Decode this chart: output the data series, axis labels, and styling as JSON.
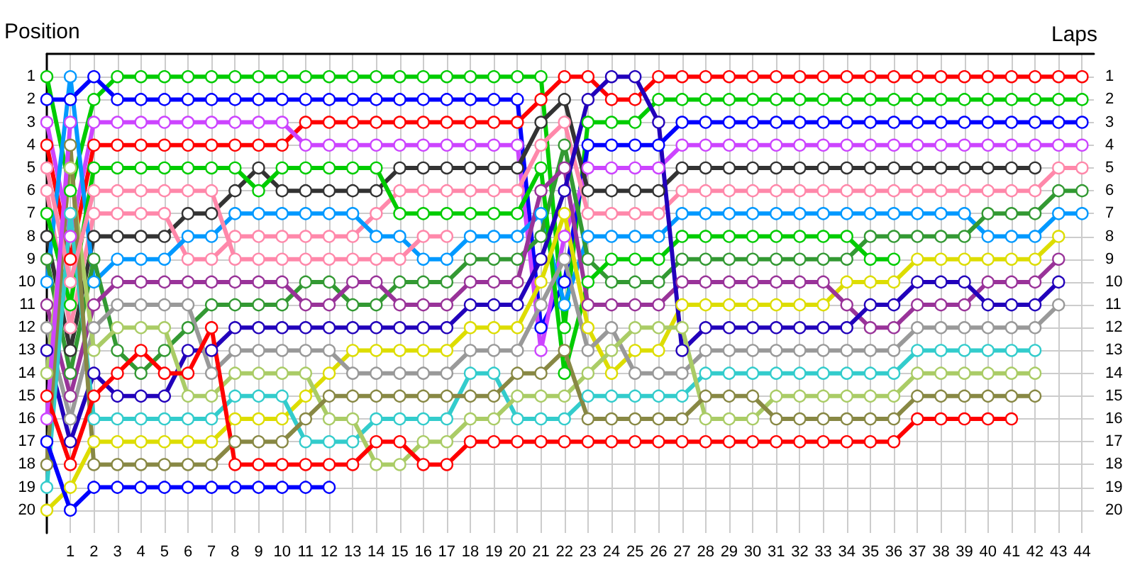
{
  "chart_data": {
    "type": "line",
    "xlabel": "Laps",
    "ylabel": "Position",
    "x": [
      0,
      1,
      2,
      3,
      4,
      5,
      6,
      7,
      8,
      9,
      10,
      11,
      12,
      13,
      14,
      15,
      16,
      17,
      18,
      19,
      20,
      21,
      22,
      23,
      24,
      25,
      26,
      27,
      28,
      29,
      30,
      31,
      32,
      33,
      34,
      35,
      36,
      37,
      38,
      39,
      40,
      41,
      42,
      43,
      44
    ],
    "xlim": [
      0,
      44.5
    ],
    "xticks": [
      1,
      2,
      3,
      4,
      5,
      6,
      7,
      8,
      9,
      10,
      11,
      12,
      13,
      14,
      15,
      16,
      17,
      18,
      19,
      20,
      21,
      22,
      23,
      24,
      25,
      26,
      27,
      28,
      29,
      30,
      31,
      32,
      33,
      34,
      35,
      36,
      37,
      38,
      39,
      40,
      41,
      42,
      43,
      44
    ],
    "ylim": [
      21,
      0
    ],
    "yticks": [
      1,
      2,
      3,
      4,
      5,
      6,
      7,
      8,
      9,
      10,
      11,
      12,
      13,
      14,
      15,
      16,
      17,
      18,
      19,
      20
    ],
    "y2lim": [
      21,
      0
    ],
    "y2ticks": [
      1,
      2,
      3,
      4,
      5,
      6,
      7,
      8,
      9,
      10,
      11,
      12,
      13,
      14,
      15,
      16,
      17,
      18,
      19,
      20
    ],
    "grid": true,
    "marker": "circle",
    "line_style": "solid",
    "series": [
      {
        "color": "#ff0000",
        "values": [
          4,
          9,
          4,
          4,
          4,
          4,
          4,
          4,
          4,
          4,
          4,
          3,
          3,
          3,
          3,
          3,
          3,
          3,
          3,
          3,
          3,
          2,
          1,
          1,
          2,
          2,
          1,
          1,
          1,
          1,
          1,
          1,
          1,
          1,
          1,
          1,
          1,
          1,
          1,
          1,
          1,
          1,
          1,
          1,
          1
        ]
      },
      {
        "color": "#00cc00",
        "values": [
          1,
          6,
          2,
          1,
          1,
          1,
          1,
          1,
          1,
          1,
          1,
          1,
          1,
          1,
          1,
          1,
          1,
          1,
          1,
          1,
          1,
          1,
          12,
          3,
          3,
          3,
          2,
          2,
          2,
          2,
          2,
          2,
          2,
          2,
          2,
          2,
          2,
          2,
          2,
          2,
          2,
          2,
          2,
          2,
          2
        ]
      },
      {
        "color": "#0000ff",
        "values": [
          2,
          2,
          1,
          2,
          2,
          2,
          2,
          2,
          2,
          2,
          2,
          2,
          2,
          2,
          2,
          2,
          2,
          2,
          2,
          2,
          2,
          12,
          10,
          4,
          4,
          4,
          4,
          3,
          3,
          3,
          3,
          3,
          3,
          3,
          3,
          3,
          3,
          3,
          3,
          3,
          3,
          3,
          3,
          3,
          3
        ]
      },
      {
        "color": "#cc44ff",
        "values": [
          3,
          8,
          3,
          3,
          3,
          3,
          3,
          3,
          3,
          3,
          3,
          4,
          4,
          4,
          4,
          4,
          4,
          4,
          4,
          4,
          4,
          13,
          8,
          5,
          5,
          5,
          5,
          4,
          4,
          4,
          4,
          4,
          4,
          4,
          4,
          4,
          4,
          4,
          4,
          4,
          4,
          4,
          4,
          4,
          4
        ]
      },
      {
        "color": "#333333",
        "values": [
          8,
          13,
          8,
          8,
          8,
          8,
          7,
          7,
          6,
          5,
          6,
          6,
          6,
          6,
          6,
          5,
          5,
          5,
          5,
          5,
          5,
          3,
          2,
          6,
          6,
          6,
          6,
          5,
          5,
          5,
          5,
          5,
          5,
          5,
          5,
          5,
          5,
          5,
          5,
          5,
          5,
          5,
          5,
          null,
          null
        ]
      },
      {
        "color": "#ff88aa",
        "values": [
          6,
          12,
          7,
          7,
          7,
          7,
          9,
          9,
          8,
          8,
          8,
          8,
          8,
          8,
          7,
          6,
          6,
          6,
          6,
          6,
          6,
          4,
          3,
          7,
          7,
          7,
          7,
          6,
          6,
          6,
          6,
          6,
          6,
          6,
          6,
          6,
          6,
          6,
          6,
          6,
          6,
          6,
          6,
          5,
          5
        ]
      },
      {
        "color": "#0099ff",
        "values": [
          10,
          1,
          10,
          9,
          9,
          9,
          8,
          8,
          7,
          7,
          7,
          7,
          7,
          7,
          8,
          8,
          9,
          9,
          8,
          8,
          8,
          7,
          11,
          8,
          8,
          8,
          8,
          7,
          7,
          7,
          7,
          7,
          7,
          7,
          7,
          7,
          7,
          7,
          7,
          7,
          8,
          8,
          8,
          7,
          7
        ]
      },
      {
        "color": "#339933",
        "values": [
          9,
          14,
          9,
          13,
          14,
          13,
          12,
          11,
          11,
          11,
          11,
          10,
          10,
          11,
          11,
          10,
          10,
          10,
          9,
          9,
          9,
          8,
          4,
          9,
          10,
          10,
          10,
          9,
          9,
          9,
          9,
          9,
          9,
          9,
          9,
          8,
          8,
          8,
          8,
          8,
          7,
          7,
          7,
          6,
          6
        ]
      },
      {
        "color": "#00cc00",
        "values": [
          7,
          11,
          5,
          5,
          5,
          5,
          5,
          5,
          5,
          6,
          5,
          5,
          5,
          5,
          5,
          7,
          7,
          7,
          7,
          7,
          7,
          5,
          14,
          10,
          9,
          9,
          9,
          8,
          8,
          8,
          8,
          8,
          8,
          8,
          8,
          9,
          9,
          null,
          null,
          null,
          null,
          null,
          null,
          null,
          null
        ]
      },
      {
        "color": "#dddd00",
        "values": [
          20,
          19,
          17,
          17,
          17,
          17,
          17,
          17,
          16,
          16,
          16,
          15,
          14,
          13,
          13,
          13,
          13,
          13,
          12,
          12,
          12,
          10,
          7,
          12,
          14,
          13,
          13,
          11,
          11,
          11,
          11,
          11,
          11,
          11,
          10,
          10,
          10,
          9,
          9,
          9,
          9,
          9,
          9,
          8,
          null
        ]
      },
      {
        "color": "#993399",
        "values": [
          11,
          15,
          11,
          10,
          10,
          10,
          10,
          10,
          10,
          10,
          10,
          11,
          11,
          10,
          10,
          11,
          11,
          11,
          10,
          10,
          10,
          6,
          5,
          11,
          11,
          11,
          11,
          10,
          10,
          10,
          10,
          10,
          10,
          10,
          11,
          12,
          12,
          11,
          11,
          11,
          10,
          10,
          10,
          9,
          null
        ]
      },
      {
        "color": "#2200bb",
        "values": [
          13,
          17,
          14,
          15,
          15,
          15,
          13,
          13,
          12,
          12,
          12,
          12,
          12,
          12,
          12,
          12,
          12,
          12,
          11,
          11,
          11,
          9,
          6,
          2,
          1,
          1,
          3,
          13,
          12,
          12,
          12,
          12,
          12,
          12,
          12,
          11,
          11,
          10,
          10,
          10,
          11,
          11,
          11,
          10,
          null
        ]
      },
      {
        "color": "#999999",
        "values": [
          12,
          16,
          12,
          11,
          11,
          11,
          11,
          14,
          13,
          13,
          13,
          13,
          13,
          14,
          14,
          14,
          14,
          14,
          13,
          13,
          13,
          11,
          9,
          13,
          12,
          14,
          14,
          14,
          13,
          13,
          13,
          13,
          13,
          13,
          13,
          13,
          13,
          12,
          12,
          12,
          12,
          12,
          12,
          11,
          null
        ]
      },
      {
        "color": "#33cccc",
        "values": [
          19,
          7,
          16,
          16,
          16,
          16,
          16,
          16,
          15,
          15,
          15,
          17,
          17,
          17,
          16,
          16,
          16,
          16,
          14,
          14,
          16,
          16,
          16,
          15,
          15,
          15,
          15,
          15,
          14,
          14,
          14,
          14,
          14,
          14,
          14,
          14,
          14,
          13,
          13,
          13,
          13,
          13,
          13,
          null,
          null
        ]
      },
      {
        "color": "#aacc66",
        "values": [
          14,
          5,
          13,
          12,
          12,
          12,
          15,
          15,
          14,
          14,
          14,
          14,
          16,
          16,
          18,
          18,
          17,
          17,
          16,
          16,
          15,
          15,
          15,
          14,
          13,
          12,
          12,
          12,
          16,
          16,
          16,
          15,
          15,
          15,
          15,
          15,
          15,
          14,
          14,
          14,
          14,
          14,
          14,
          null,
          null
        ]
      },
      {
        "color": "#888844",
        "values": [
          18,
          4,
          18,
          18,
          18,
          18,
          18,
          18,
          17,
          17,
          17,
          16,
          15,
          15,
          15,
          15,
          15,
          15,
          15,
          15,
          14,
          14,
          13,
          16,
          16,
          16,
          16,
          16,
          15,
          15,
          15,
          16,
          16,
          16,
          16,
          16,
          16,
          15,
          15,
          15,
          15,
          15,
          15,
          null,
          null
        ]
      },
      {
        "color": "#ff0000",
        "values": [
          15,
          18,
          15,
          14,
          13,
          14,
          14,
          12,
          18,
          18,
          18,
          18,
          18,
          18,
          17,
          17,
          18,
          18,
          17,
          17,
          17,
          17,
          17,
          17,
          17,
          17,
          17,
          17,
          17,
          17,
          17,
          17,
          17,
          17,
          17,
          17,
          17,
          16,
          16,
          16,
          16,
          16,
          null,
          null,
          null
        ]
      },
      {
        "color": "#0000ff",
        "values": [
          17,
          20,
          19,
          19,
          19,
          19,
          19,
          19,
          19,
          19,
          19,
          19,
          19,
          null,
          null,
          null,
          null,
          null,
          null,
          null,
          null,
          null,
          null,
          null,
          null,
          null,
          null,
          null,
          null,
          null,
          null,
          null,
          null,
          null,
          null,
          null,
          null,
          null,
          null,
          null,
          null,
          null,
          null,
          null,
          null
        ]
      },
      {
        "color": "#ff88aa",
        "values": [
          5,
          10,
          6,
          6,
          6,
          6,
          6,
          6,
          9,
          9,
          9,
          9,
          9,
          9,
          9,
          9,
          8,
          8,
          null,
          null,
          null,
          null,
          null,
          null,
          null,
          null,
          null,
          null,
          null,
          null,
          null,
          null,
          null,
          null,
          null,
          null,
          null,
          null,
          null,
          null,
          null,
          null,
          null,
          null,
          null
        ]
      },
      {
        "color": "#cc44ff",
        "values": [
          16,
          3,
          null,
          null,
          null,
          null,
          null,
          null,
          null,
          null,
          null,
          null,
          null,
          null,
          null,
          null,
          null,
          null,
          null,
          null,
          null,
          null,
          null,
          null,
          null,
          null,
          null,
          null,
          null,
          null,
          null,
          null,
          null,
          null,
          null,
          null,
          null,
          null,
          null,
          null,
          null,
          null,
          null,
          null,
          null
        ]
      }
    ]
  }
}
